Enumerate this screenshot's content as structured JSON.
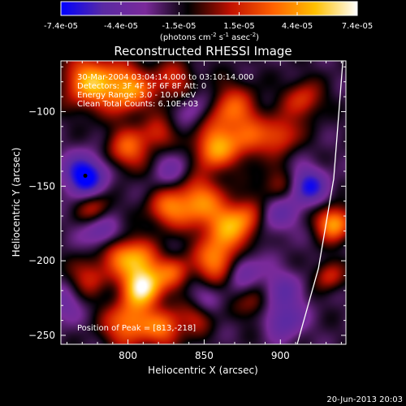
{
  "chart_data": {
    "type": "heatmap",
    "title": "Reconstructed RHESSI Image",
    "xlabel": "Heliocentric X (arcsec)",
    "ylabel": "Heliocentric Y (arcsec)",
    "xlim": [
      756,
      943
    ],
    "ylim": [
      -256,
      -66
    ],
    "x_ticks": [
      800,
      850,
      900
    ],
    "y_ticks": [
      -100,
      -150,
      -200,
      -250
    ],
    "colorbar": {
      "range": [
        -7.4e-05,
        7.4e-05
      ],
      "tick_values": [
        -7.4e-05,
        -4.4e-05,
        -1.5e-05,
        1.5e-05,
        4.4e-05,
        7.4e-05
      ],
      "tick_labels": [
        "-7.4e-05",
        "-4.4e-05",
        "-1.5e-05",
        "1.5e-05",
        "4.4e-05",
        "7.4e-05"
      ],
      "units_label": "(photons cm",
      "units_sup1": "-2",
      "units_mid": " s",
      "units_sup2": "-1",
      "units_end": " asec",
      "units_sup3": "-2",
      "units_close": ")",
      "colormap_stops": [
        "#0000ff",
        "#5a2aa3",
        "#7a2a9a",
        "#000000",
        "#c01000",
        "#ff6000",
        "#ffc000",
        "#ffffff"
      ]
    },
    "info_lines": [
      "30-Mar-2004 03:04:14.000 to 03:10:14.000",
      "Detectors: 3F 4F 5F 6F 8F  Att: 0",
      "Energy Range: 3.0 - 10.0 keV",
      "Clean    Total Counts: 6.10E+03"
    ],
    "peak_text": "Position of Peak = [813,-218]",
    "peak": [
      813,
      -218
    ],
    "limb_arc": [
      [
        911,
        -256
      ],
      [
        925,
        -205
      ],
      [
        935,
        -145
      ],
      [
        941,
        -66
      ]
    ],
    "blobs": [
      {
        "x": 775,
        "y": -80,
        "amp": 1.0,
        "s": 12
      },
      {
        "x": 800,
        "y": -85,
        "amp": 0.9,
        "s": 11
      },
      {
        "x": 830,
        "y": -80,
        "amp": 0.5,
        "s": 10
      },
      {
        "x": 868,
        "y": -100,
        "amp": 0.75,
        "s": 12
      },
      {
        "x": 857,
        "y": -125,
        "amp": 0.9,
        "s": 10
      },
      {
        "x": 880,
        "y": -120,
        "amp": 0.5,
        "s": 9
      },
      {
        "x": 800,
        "y": -125,
        "amp": 0.7,
        "s": 10
      },
      {
        "x": 820,
        "y": -115,
        "amp": 0.45,
        "s": 8
      },
      {
        "x": 845,
        "y": -160,
        "amp": 0.85,
        "s": 12
      },
      {
        "x": 825,
        "y": -165,
        "amp": 0.6,
        "s": 9
      },
      {
        "x": 866,
        "y": -178,
        "amp": 0.8,
        "s": 11
      },
      {
        "x": 858,
        "y": -200,
        "amp": 0.85,
        "s": 10
      },
      {
        "x": 880,
        "y": -170,
        "amp": 0.5,
        "s": 9
      },
      {
        "x": 898,
        "y": -150,
        "amp": 0.45,
        "s": 9
      },
      {
        "x": 900,
        "y": -115,
        "amp": 0.6,
        "s": 9
      },
      {
        "x": 915,
        "y": -92,
        "amp": 0.55,
        "s": 9
      },
      {
        "x": 935,
        "y": -175,
        "amp": 1.0,
        "s": 8
      },
      {
        "x": 932,
        "y": -210,
        "amp": 0.5,
        "s": 7
      },
      {
        "x": 806,
        "y": -200,
        "amp": 0.85,
        "s": 10
      },
      {
        "x": 810,
        "y": -218,
        "amp": 1.2,
        "s": 9
      },
      {
        "x": 830,
        "y": -208,
        "amp": 0.6,
        "s": 8
      },
      {
        "x": 775,
        "y": -210,
        "amp": 0.5,
        "s": 9
      },
      {
        "x": 793,
        "y": -195,
        "amp": 0.45,
        "s": 8
      },
      {
        "x": 800,
        "y": -242,
        "amp": 0.85,
        "s": 11
      },
      {
        "x": 824,
        "y": -245,
        "amp": 0.7,
        "s": 9
      },
      {
        "x": 845,
        "y": -238,
        "amp": 0.4,
        "s": 8
      },
      {
        "x": 778,
        "y": -165,
        "amp": 0.55,
        "s": 8
      },
      {
        "x": 883,
        "y": -228,
        "amp": 0.4,
        "s": 8
      },
      {
        "x": 772,
        "y": -143,
        "amp": -0.95,
        "s": 10
      },
      {
        "x": 782,
        "y": -180,
        "amp": -0.5,
        "s": 9
      },
      {
        "x": 830,
        "y": -140,
        "amp": -0.35,
        "s": 10
      },
      {
        "x": 896,
        "y": -168,
        "amp": -0.5,
        "s": 10
      },
      {
        "x": 918,
        "y": -150,
        "amp": -0.75,
        "s": 9
      },
      {
        "x": 875,
        "y": -205,
        "amp": -0.45,
        "s": 9
      },
      {
        "x": 900,
        "y": -220,
        "amp": -0.4,
        "s": 10
      },
      {
        "x": 903,
        "y": -240,
        "amp": -0.5,
        "s": 9
      },
      {
        "x": 845,
        "y": -96,
        "amp": -0.35,
        "s": 9
      },
      {
        "x": 757,
        "y": -230,
        "amp": -0.35,
        "s": 9
      },
      {
        "x": 850,
        "y": -225,
        "amp": -0.25,
        "s": 8
      }
    ]
  },
  "footer": {
    "date_stamp": "20-Jun-2013 20:03"
  },
  "colors": {
    "background": "#000000",
    "foreground": "#ffffff"
  }
}
